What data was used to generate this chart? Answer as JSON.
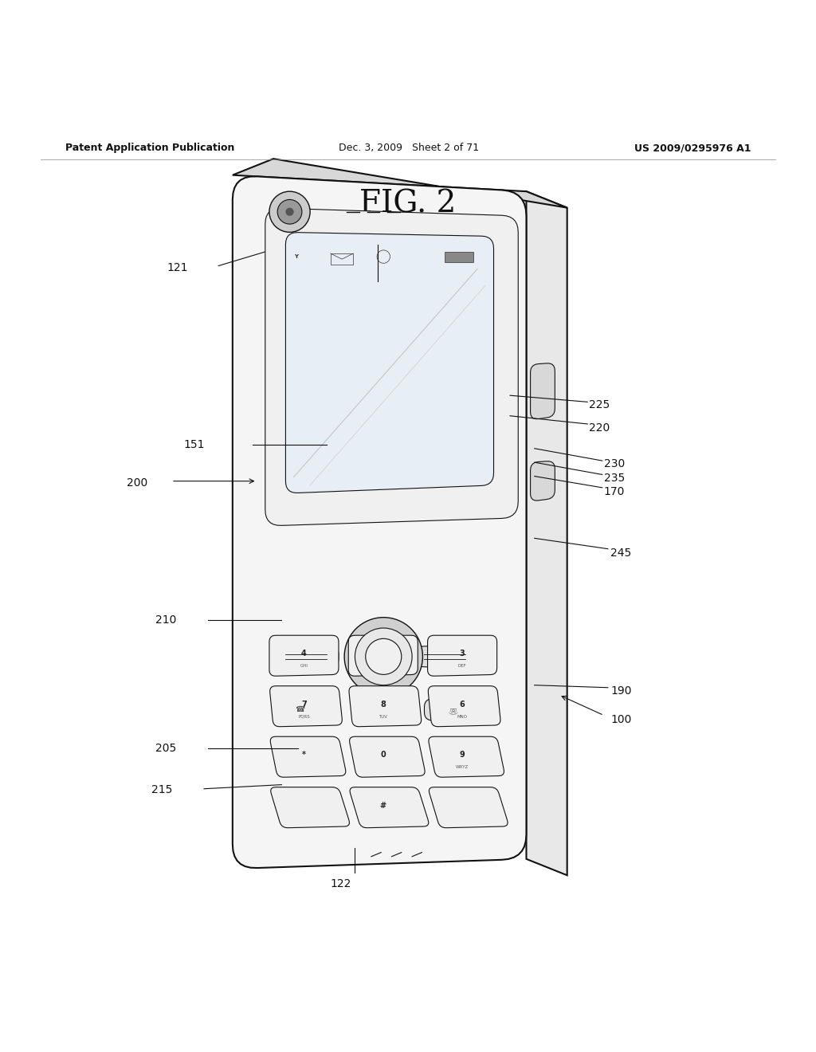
{
  "bg_color": "#ffffff",
  "title": "FIG. 2",
  "header_left": "Patent Application Publication",
  "header_center": "Dec. 3, 2009   Sheet 2 of 71",
  "header_right": "US 2009/0295976 A1",
  "line_color": "#111111",
  "text_color": "#111111",
  "font_size_header": 9,
  "font_size_title": 28,
  "font_size_labels": 10
}
